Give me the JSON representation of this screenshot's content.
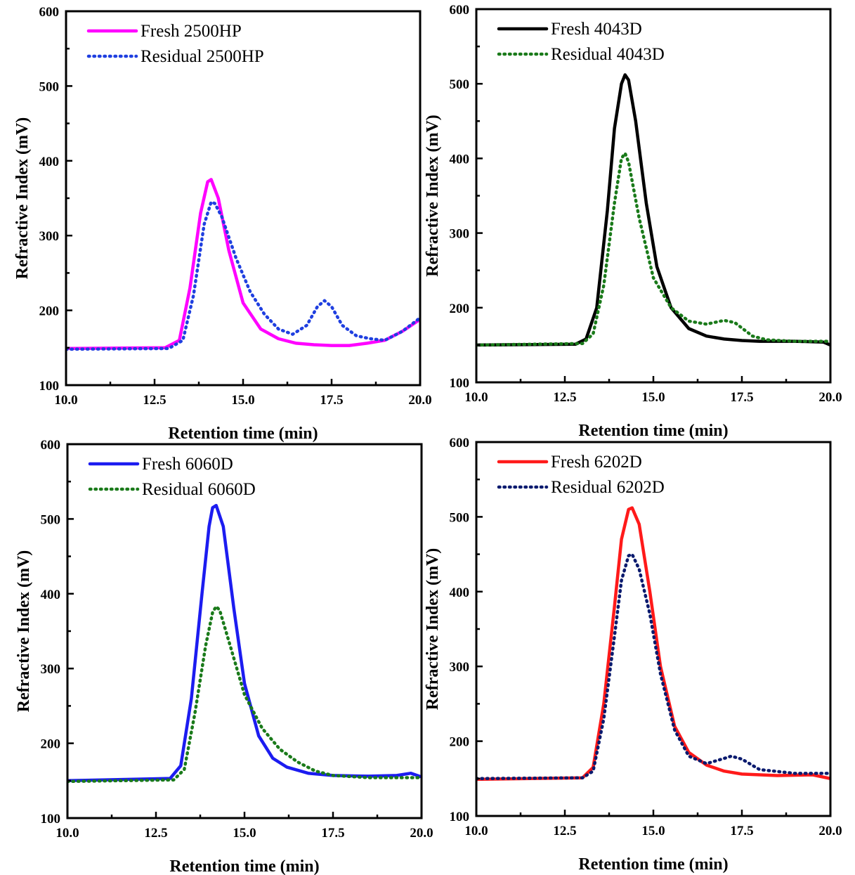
{
  "chart_data": [
    {
      "type": "line",
      "xlabel": "Retention time (min)",
      "ylabel": "Refractive Index (mV)",
      "xlim": [
        10,
        20
      ],
      "ylim": [
        100,
        600
      ],
      "xticks": [
        "10.0",
        "12.5",
        "15.0",
        "17.5",
        "20.0"
      ],
      "yticks": [
        "100",
        "200",
        "300",
        "400",
        "500",
        "600"
      ],
      "legend_position": "top-left",
      "series": [
        {
          "name": "Fresh 2500HP",
          "style": "solid",
          "color": "#ff00ff",
          "x": [
            10,
            12.8,
            13.2,
            13.5,
            13.8,
            14.0,
            14.1,
            14.3,
            14.6,
            15.0,
            15.5,
            16.0,
            16.5,
            17.0,
            17.5,
            18.0,
            18.5,
            19.0,
            19.5,
            20.0
          ],
          "y": [
            149,
            150,
            160,
            230,
            330,
            372,
            375,
            350,
            280,
            210,
            175,
            162,
            156,
            154,
            153,
            153,
            156,
            160,
            172,
            188
          ]
        },
        {
          "name": "Residual 2500HP",
          "style": "dotted",
          "color": "#1f3fe0",
          "x": [
            10,
            12.9,
            13.3,
            13.6,
            13.9,
            14.1,
            14.2,
            14.4,
            14.8,
            15.2,
            15.6,
            16.0,
            16.4,
            16.8,
            17.1,
            17.3,
            17.5,
            17.8,
            18.2,
            18.6,
            19.0,
            19.5,
            20.0
          ],
          "y": [
            148,
            149,
            160,
            220,
            315,
            345,
            343,
            325,
            270,
            225,
            195,
            175,
            168,
            180,
            205,
            213,
            205,
            180,
            166,
            162,
            160,
            172,
            190
          ]
        }
      ]
    },
    {
      "type": "line",
      "xlabel": "Retention time (min)",
      "ylabel": "Refractive Index (mV)",
      "xlim": [
        10,
        20
      ],
      "ylim": [
        100,
        600
      ],
      "xticks": [
        "10.0",
        "12.5",
        "15.0",
        "17.5",
        "20.0"
      ],
      "yticks": [
        "100",
        "200",
        "300",
        "400",
        "500",
        "600"
      ],
      "legend_position": "top-left",
      "series": [
        {
          "name": "Fresh 4043D",
          "style": "solid",
          "color": "#000000",
          "x": [
            10,
            12.8,
            13.1,
            13.4,
            13.7,
            13.9,
            14.1,
            14.2,
            14.3,
            14.5,
            14.8,
            15.1,
            15.5,
            16.0,
            16.5,
            17.0,
            17.5,
            18.0,
            19.0,
            19.8,
            20.0
          ],
          "y": [
            150,
            151,
            158,
            200,
            330,
            440,
            500,
            512,
            505,
            450,
            340,
            255,
            200,
            172,
            162,
            158,
            156,
            155,
            155,
            154,
            150
          ]
        },
        {
          "name": "Residual 4043D",
          "style": "dotted",
          "color": "#1a7a1a",
          "x": [
            10,
            13.0,
            13.3,
            13.6,
            13.9,
            14.1,
            14.2,
            14.3,
            14.6,
            15.0,
            15.5,
            16.0,
            16.5,
            17.0,
            17.3,
            17.8,
            18.2,
            19.0,
            20.0
          ],
          "y": [
            150,
            152,
            165,
            230,
            340,
            400,
            407,
            395,
            320,
            240,
            200,
            182,
            178,
            183,
            180,
            162,
            157,
            155,
            155
          ]
        }
      ]
    },
    {
      "type": "line",
      "xlabel": "Retention time (min)",
      "ylabel": "Refractive Index (mV)",
      "xlim": [
        10,
        20
      ],
      "ylim": [
        100,
        600
      ],
      "xticks": [
        "10.0",
        "12.5",
        "15.0",
        "17.5",
        "20.0"
      ],
      "yticks": [
        "100",
        "200",
        "300",
        "400",
        "500",
        "600"
      ],
      "legend_position": "top-left",
      "series": [
        {
          "name": "Fresh 6060D",
          "style": "solid",
          "color": "#1c1cf0",
          "x": [
            10,
            12.9,
            13.2,
            13.5,
            13.8,
            14.0,
            14.1,
            14.2,
            14.4,
            14.7,
            15.0,
            15.4,
            15.8,
            16.2,
            16.8,
            17.5,
            18.5,
            19.3,
            19.7,
            20.0
          ],
          "y": [
            150,
            153,
            170,
            260,
            400,
            490,
            515,
            518,
            490,
            380,
            280,
            210,
            180,
            168,
            160,
            157,
            156,
            157,
            160,
            155
          ]
        },
        {
          "name": "Residual 6060D",
          "style": "dotted",
          "color": "#1a7a1a",
          "x": [
            10,
            13.0,
            13.3,
            13.6,
            13.9,
            14.1,
            14.2,
            14.3,
            14.6,
            15.0,
            15.5,
            16.0,
            16.5,
            17.0,
            17.5,
            18.5,
            20.0
          ],
          "y": [
            149,
            151,
            165,
            240,
            330,
            375,
            383,
            378,
            330,
            265,
            220,
            192,
            175,
            163,
            157,
            154,
            154
          ]
        }
      ]
    },
    {
      "type": "line",
      "xlabel": "Retention time (min)",
      "ylabel": "Refractive Index (mV)",
      "xlim": [
        10,
        20
      ],
      "ylim": [
        100,
        600
      ],
      "xticks": [
        "10.0",
        "12.5",
        "15.0",
        "17.5",
        "20.0"
      ],
      "yticks": [
        "100",
        "200",
        "300",
        "400",
        "500",
        "600"
      ],
      "legend_position": "top-left",
      "series": [
        {
          "name": "Fresh 6202D",
          "style": "solid",
          "color": "#ff1a1a",
          "x": [
            10,
            13.0,
            13.3,
            13.6,
            13.9,
            14.1,
            14.3,
            14.4,
            14.6,
            14.9,
            15.2,
            15.6,
            16.0,
            16.5,
            17.0,
            17.5,
            18.5,
            19.5,
            20.0
          ],
          "y": [
            149,
            151,
            165,
            250,
            380,
            470,
            510,
            512,
            490,
            400,
            300,
            220,
            185,
            168,
            160,
            156,
            154,
            155,
            150
          ]
        },
        {
          "name": "Residual 6202D",
          "style": "dotted",
          "color": "#0a1a6e",
          "x": [
            10,
            13.0,
            13.3,
            13.6,
            13.9,
            14.1,
            14.3,
            14.4,
            14.6,
            14.9,
            15.2,
            15.6,
            16.0,
            16.5,
            17.0,
            17.2,
            17.5,
            18.0,
            19.0,
            20.0
          ],
          "y": [
            150,
            151,
            160,
            230,
            340,
            415,
            448,
            450,
            430,
            370,
            290,
            215,
            180,
            170,
            177,
            180,
            176,
            162,
            157,
            157
          ]
        }
      ]
    }
  ]
}
